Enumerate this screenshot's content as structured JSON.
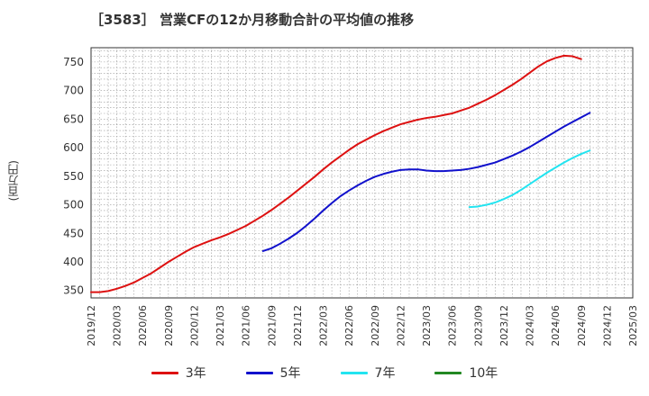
{
  "chart_data": {
    "type": "line",
    "title": "［3583］ 営業CFの12か月移動合計の平均値の推移",
    "ylabel": "(百万円)",
    "xlabel": "",
    "ylim": [
      337,
      775
    ],
    "yticks": [
      350,
      400,
      450,
      500,
      550,
      600,
      650,
      700,
      750
    ],
    "xticks": [
      "2019/12",
      "2020/03",
      "2020/06",
      "2020/09",
      "2020/12",
      "2021/03",
      "2021/06",
      "2021/09",
      "2021/12",
      "2022/03",
      "2022/06",
      "2022/09",
      "2022/12",
      "2023/03",
      "2023/06",
      "2023/09",
      "2023/12",
      "2024/03",
      "2024/06",
      "2024/09",
      "2024/12",
      "2025/03"
    ],
    "grid": true,
    "legend_position": "bottom",
    "series": [
      {
        "name": "3年",
        "color": "#dd1111",
        "points": [
          [
            "2019/12",
            347
          ],
          [
            "2020/01",
            347
          ],
          [
            "2020/02",
            349
          ],
          [
            "2020/03",
            353
          ],
          [
            "2020/04",
            358
          ],
          [
            "2020/05",
            364
          ],
          [
            "2020/06",
            372
          ],
          [
            "2020/07",
            380
          ],
          [
            "2020/08",
            390
          ],
          [
            "2020/09",
            400
          ],
          [
            "2020/10",
            409
          ],
          [
            "2020/11",
            418
          ],
          [
            "2020/12",
            426
          ],
          [
            "2021/01",
            432
          ],
          [
            "2021/02",
            438
          ],
          [
            "2021/03",
            443
          ],
          [
            "2021/04",
            449
          ],
          [
            "2021/05",
            456
          ],
          [
            "2021/06",
            463
          ],
          [
            "2021/07",
            472
          ],
          [
            "2021/08",
            481
          ],
          [
            "2021/09",
            491
          ],
          [
            "2021/10",
            502
          ],
          [
            "2021/11",
            513
          ],
          [
            "2021/12",
            525
          ],
          [
            "2022/01",
            537
          ],
          [
            "2022/02",
            549
          ],
          [
            "2022/03",
            562
          ],
          [
            "2022/04",
            574
          ],
          [
            "2022/05",
            585
          ],
          [
            "2022/06",
            596
          ],
          [
            "2022/07",
            606
          ],
          [
            "2022/08",
            614
          ],
          [
            "2022/09",
            622
          ],
          [
            "2022/10",
            629
          ],
          [
            "2022/11",
            635
          ],
          [
            "2022/12",
            641
          ],
          [
            "2023/01",
            645
          ],
          [
            "2023/02",
            649
          ],
          [
            "2023/03",
            652
          ],
          [
            "2023/04",
            654
          ],
          [
            "2023/05",
            657
          ],
          [
            "2023/06",
            660
          ],
          [
            "2023/07",
            665
          ],
          [
            "2023/08",
            670
          ],
          [
            "2023/09",
            677
          ],
          [
            "2023/10",
            684
          ],
          [
            "2023/11",
            692
          ],
          [
            "2023/12",
            701
          ],
          [
            "2024/01",
            710
          ],
          [
            "2024/02",
            720
          ],
          [
            "2024/03",
            731
          ],
          [
            "2024/04",
            742
          ],
          [
            "2024/05",
            751
          ],
          [
            "2024/06",
            757
          ],
          [
            "2024/07",
            761
          ],
          [
            "2024/08",
            760
          ],
          [
            "2024/09",
            755
          ]
        ]
      },
      {
        "name": "5年",
        "color": "#1111cc",
        "points": [
          [
            "2021/08",
            419
          ],
          [
            "2021/09",
            424
          ],
          [
            "2021/10",
            432
          ],
          [
            "2021/11",
            441
          ],
          [
            "2021/12",
            451
          ],
          [
            "2022/01",
            463
          ],
          [
            "2022/02",
            476
          ],
          [
            "2022/03",
            490
          ],
          [
            "2022/04",
            503
          ],
          [
            "2022/05",
            515
          ],
          [
            "2022/06",
            525
          ],
          [
            "2022/07",
            534
          ],
          [
            "2022/08",
            542
          ],
          [
            "2022/09",
            549
          ],
          [
            "2022/10",
            554
          ],
          [
            "2022/11",
            558
          ],
          [
            "2022/12",
            561
          ],
          [
            "2023/01",
            562
          ],
          [
            "2023/02",
            562
          ],
          [
            "2023/03",
            560
          ],
          [
            "2023/04",
            559
          ],
          [
            "2023/05",
            559
          ],
          [
            "2023/06",
            560
          ],
          [
            "2023/07",
            561
          ],
          [
            "2023/08",
            563
          ],
          [
            "2023/09",
            566
          ],
          [
            "2023/10",
            570
          ],
          [
            "2023/11",
            574
          ],
          [
            "2023/12",
            580
          ],
          [
            "2024/01",
            586
          ],
          [
            "2024/02",
            593
          ],
          [
            "2024/03",
            601
          ],
          [
            "2024/04",
            610
          ],
          [
            "2024/05",
            619
          ],
          [
            "2024/06",
            628
          ],
          [
            "2024/07",
            637
          ],
          [
            "2024/08",
            645
          ],
          [
            "2024/09",
            653
          ],
          [
            "2024/10",
            661
          ]
        ]
      },
      {
        "name": "7年",
        "color": "#22e4f0",
        "points": [
          [
            "2023/08",
            496
          ],
          [
            "2023/09",
            497
          ],
          [
            "2023/10",
            500
          ],
          [
            "2023/11",
            504
          ],
          [
            "2023/12",
            510
          ],
          [
            "2024/01",
            517
          ],
          [
            "2024/02",
            526
          ],
          [
            "2024/03",
            536
          ],
          [
            "2024/04",
            546
          ],
          [
            "2024/05",
            556
          ],
          [
            "2024/06",
            565
          ],
          [
            "2024/07",
            574
          ],
          [
            "2024/08",
            582
          ],
          [
            "2024/09",
            589
          ],
          [
            "2024/10",
            595
          ]
        ]
      },
      {
        "name": "10年",
        "color": "#228822",
        "points": []
      }
    ]
  }
}
